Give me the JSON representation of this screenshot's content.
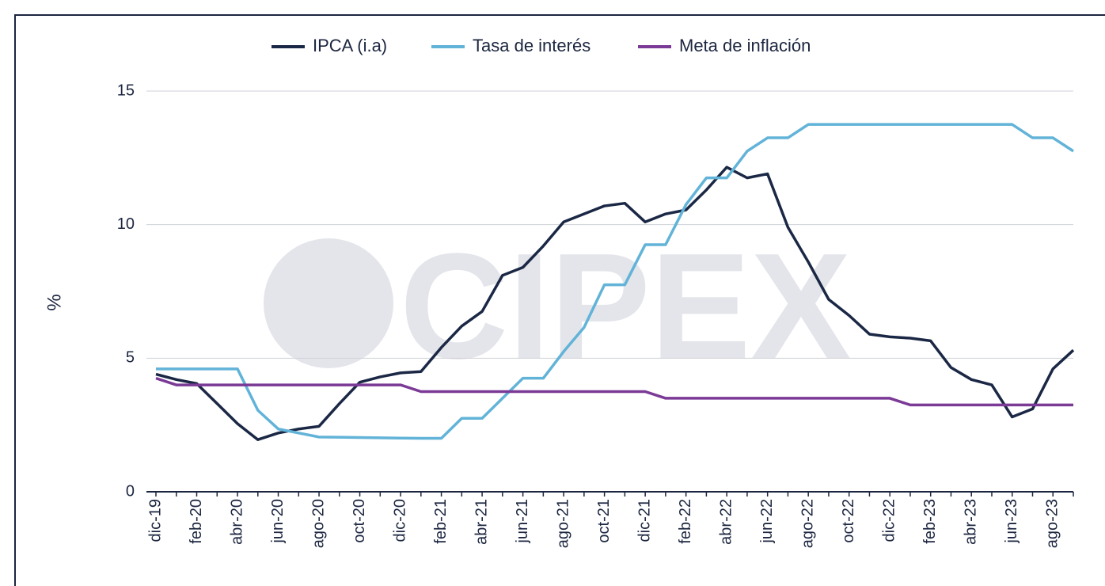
{
  "chart_data": {
    "type": "line",
    "watermark": "CIPEX",
    "ylabel": "%",
    "categories": [
      "dic-19",
      null,
      "feb-20",
      null,
      "abr-20",
      null,
      "jun-20",
      null,
      "ago-20",
      null,
      "oct-20",
      null,
      "dic-20",
      null,
      "feb-21",
      null,
      "abr-21",
      null,
      "jun-21",
      null,
      "ago-21",
      null,
      "oct-21",
      null,
      "dic-21",
      null,
      "feb-22",
      null,
      "abr-22",
      null,
      "jun-22",
      null,
      "ago-22",
      null,
      "oct-22",
      null,
      "dic-22",
      null,
      "feb-23",
      null,
      "abr-23",
      null,
      "jun-23",
      null,
      "ago-23",
      null
    ],
    "series": [
      {
        "name": "IPCA (i.a)",
        "color": "#1b2845",
        "values": [
          4.4,
          4.2,
          4.05,
          3.3,
          2.55,
          1.95,
          2.2,
          2.35,
          2.45,
          3.3,
          4.1,
          4.3,
          4.45,
          4.5,
          5.4,
          6.2,
          6.75,
          8.1,
          8.4,
          9.2,
          10.1,
          10.4,
          10.7,
          10.8,
          10.1,
          10.4,
          10.55,
          11.3,
          12.15,
          11.75,
          11.9,
          9.9,
          8.6,
          7.2,
          6.6,
          5.9,
          5.8,
          5.75,
          5.65,
          4.65,
          4.2,
          4.0,
          2.8,
          3.1,
          4.6,
          5.3
        ]
      },
      {
        "name": "Tasa de interés",
        "color": "#62b3d8",
        "values": [
          4.6,
          4.6,
          4.6,
          4.6,
          4.6,
          3.05,
          2.35,
          2.2,
          2.05,
          2.04,
          2.03,
          2.02,
          2.01,
          2.0,
          2.0,
          2.75,
          2.75,
          3.5,
          4.25,
          4.25,
          5.25,
          6.15,
          7.75,
          7.75,
          9.25,
          9.25,
          10.75,
          11.75,
          11.75,
          12.75,
          13.25,
          13.25,
          13.75,
          13.75,
          13.75,
          13.75,
          13.75,
          13.75,
          13.75,
          13.75,
          13.75,
          13.75,
          13.75,
          13.25,
          13.25,
          12.75
        ]
      },
      {
        "name": "Meta de inflación",
        "color": "#7b3a96",
        "values": [
          4.25,
          4.0,
          4.0,
          4.0,
          4.0,
          4.0,
          4.0,
          4.0,
          4.0,
          4.0,
          4.0,
          4.0,
          4.0,
          3.75,
          3.75,
          3.75,
          3.75,
          3.75,
          3.75,
          3.75,
          3.75,
          3.75,
          3.75,
          3.75,
          3.75,
          3.5,
          3.5,
          3.5,
          3.5,
          3.5,
          3.5,
          3.5,
          3.5,
          3.5,
          3.5,
          3.5,
          3.5,
          3.25,
          3.25,
          3.25,
          3.25,
          3.25,
          3.25,
          3.25,
          3.25,
          3.25
        ]
      }
    ],
    "ylim": [
      0,
      15
    ],
    "yticks": [
      0,
      5,
      10,
      15
    ],
    "grid": true,
    "legend": "top"
  }
}
